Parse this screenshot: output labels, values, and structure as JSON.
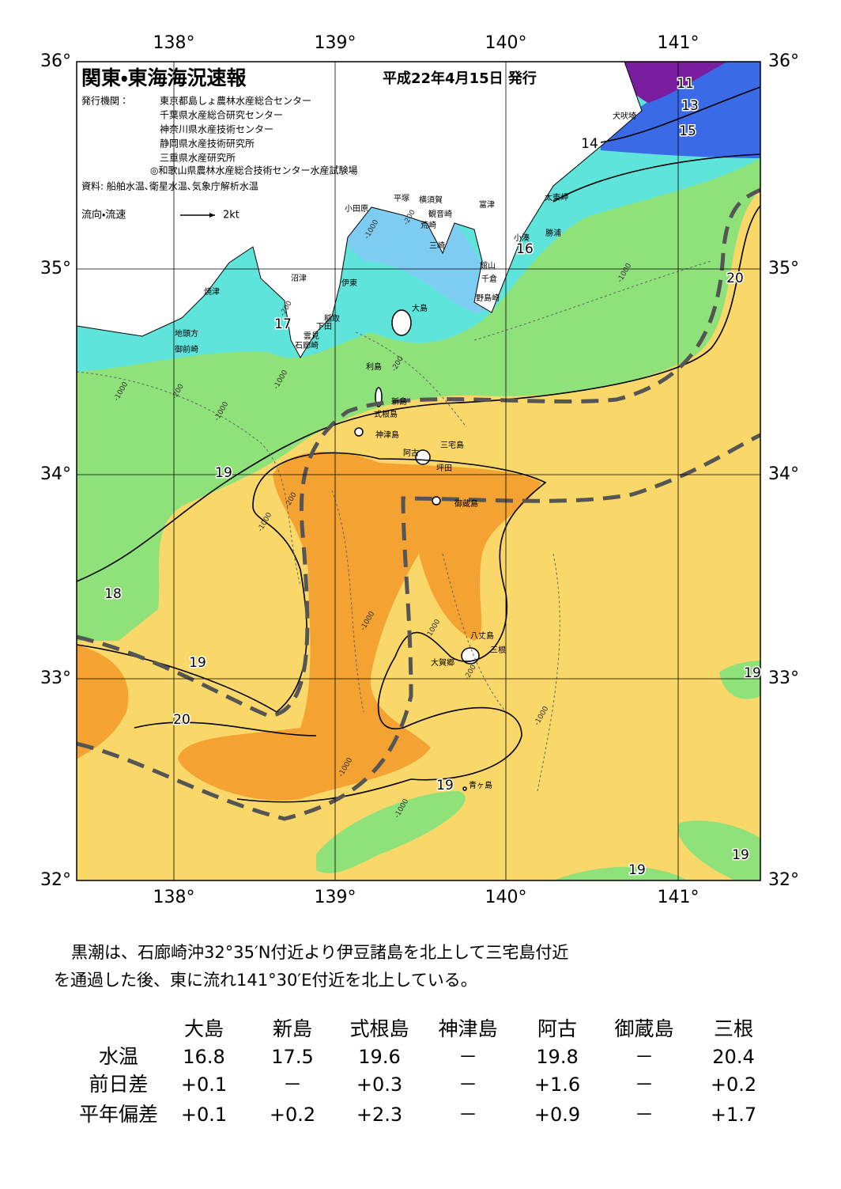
{
  "header": {
    "title": "関東・東海海況速報",
    "date": "平成22年4月15日 発行"
  },
  "publisher": {
    "label": "発行機関：",
    "orgs": [
      "東京都島しょ農林水産総合センター",
      "千葉県水産総合研究センター",
      "神奈川県水産技術センター",
      "静岡県水産技術研究所",
      "三重県水産研究所",
      "◎和歌山県農林水産総合技術センター水産試験場"
    ]
  },
  "source": "資料: 船舶水温､衛星水温､気象庁解析水温",
  "legend": {
    "label": "流向・流速",
    "scale": "2kt"
  },
  "lon_labels": [
    "138°",
    "139°",
    "140°",
    "141°"
  ],
  "lat_labels": [
    "36°",
    "35°",
    "34°",
    "33°",
    "32°"
  ],
  "places": [
    "大島",
    "利島",
    "新島",
    "式根島",
    "神津島",
    "三宅島",
    "阿古",
    "坪田",
    "御蔵島",
    "八丈島",
    "三根",
    "大賀郷",
    "青ヶ島",
    "犬吠埼",
    "太東岬",
    "勝浦",
    "小湊",
    "館山",
    "千倉",
    "野島崎",
    "富津",
    "横須賀",
    "観音崎",
    "平塚",
    "荒崎",
    "三崎",
    "小田原",
    "沼津",
    "伊東",
    "焼津",
    "稲取",
    "下田",
    "雲見",
    "石廊崎",
    "地頭方",
    "御前崎"
  ],
  "contour_labels": [
    "11",
    "13",
    "15",
    "14",
    "16",
    "17",
    "20",
    "19",
    "18",
    "19",
    "20",
    "19",
    "19",
    "19",
    "19"
  ],
  "depth_labels": [
    "-200",
    "-1000",
    "-200",
    "-1000",
    "-200",
    "-1000",
    "-200",
    "-1000",
    "-1000",
    "-200",
    "-1000",
    "-1000",
    "-1000",
    "-200",
    "-1000",
    "-1000",
    "-1000"
  ],
  "summary": [
    "黒潮は、石廊崎沖32°35′N付近より伊豆諸島を北上して三宅島付近",
    "を通過した後、東に流れ141°30′E付近を北上している。"
  ],
  "table": {
    "header": [
      "大島",
      "新島",
      "式根島",
      "神津島",
      "阿古",
      "御蔵島",
      "三根"
    ],
    "rows": [
      {
        "label": "水温",
        "cells": [
          "16.8",
          "17.5",
          "19.6",
          "－",
          "19.8",
          "－",
          "20.4"
        ]
      },
      {
        "label": "前日差",
        "cells": [
          "+0.1",
          "－",
          "+0.3",
          "－",
          "+1.6",
          "－",
          "+0.2"
        ]
      },
      {
        "label": "平年偏差",
        "cells": [
          "+0.1",
          "+0.2",
          "+2.3",
          "－",
          "+0.9",
          "－",
          "+1.7"
        ]
      }
    ]
  }
}
